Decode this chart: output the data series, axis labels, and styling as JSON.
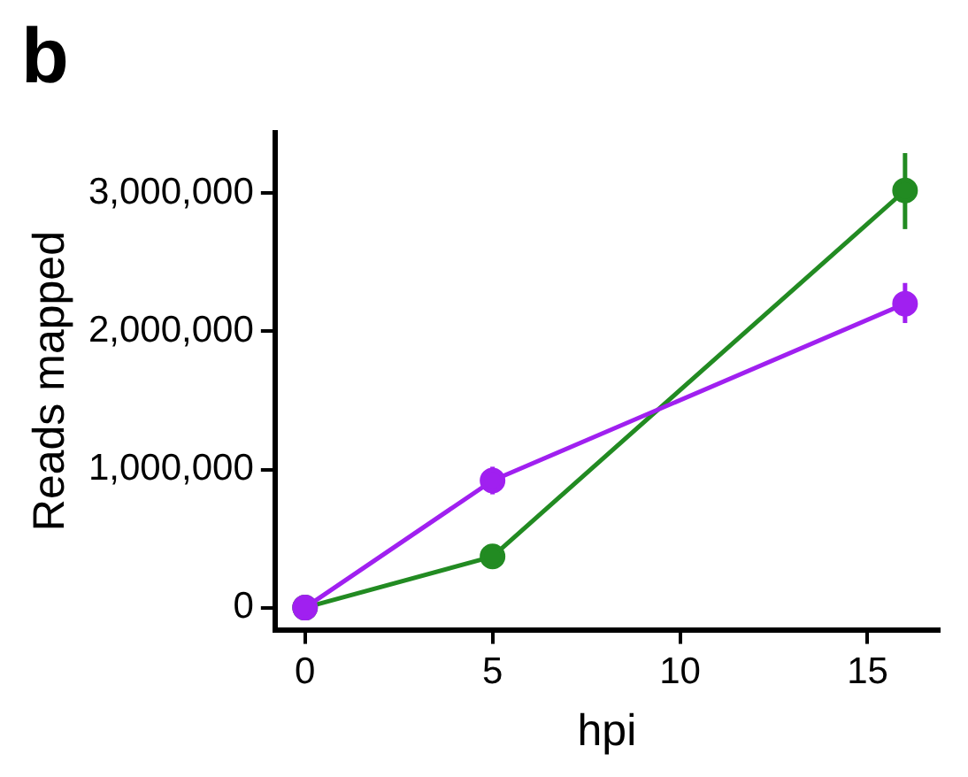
{
  "chart_data": {
    "type": "line",
    "title": "b",
    "xlabel": "hpi",
    "ylabel": "Reads mapped",
    "x": [
      0,
      5,
      16
    ],
    "series": [
      {
        "color": "#228b22",
        "values": [
          0,
          370000,
          3020000
        ],
        "errors": [
          null,
          null,
          [
            2740000,
            3290000
          ]
        ]
      },
      {
        "color": "#a020f0",
        "values": [
          0,
          920000,
          2200000
        ],
        "errors": [
          null,
          [
            820000,
            1020000
          ],
          [
            2060000,
            2350000
          ]
        ]
      }
    ],
    "xlim": [
      -0.8,
      16.9
    ],
    "xticks": [
      0,
      5,
      10,
      15
    ],
    "ylim": [
      -160000,
      3440000
    ],
    "yticks": [
      {
        "value": 0,
        "label": "0"
      },
      {
        "value": 1000000,
        "label": "1,000,000"
      },
      {
        "value": 2000000,
        "label": "2,000,000"
      },
      {
        "value": 3000000,
        "label": "3,000,000"
      }
    ],
    "grid": false,
    "legend": false,
    "marker": "circle",
    "line_style": "solid"
  }
}
